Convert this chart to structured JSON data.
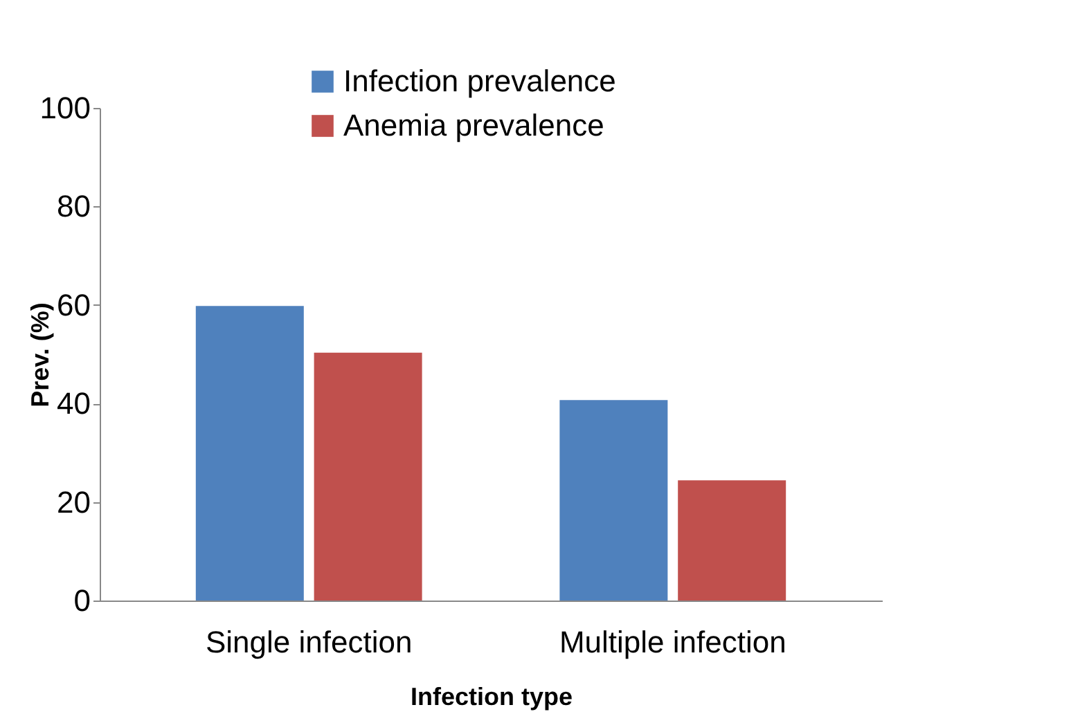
{
  "chart_data": {
    "type": "bar",
    "categories": [
      "Single infection",
      "Multiple infection"
    ],
    "series": [
      {
        "name": "Infection prevalence",
        "color": "#4f81bd",
        "values": [
          59.8,
          40.7
        ]
      },
      {
        "name": "Anemia  prevalence",
        "color": "#c0504d",
        "values": [
          50.3,
          24.4
        ]
      }
    ],
    "xlabel": "Infection type",
    "ylabel": "Prev. (%)",
    "ylim": [
      0,
      100
    ],
    "yticks": [
      0,
      20,
      40,
      60,
      80,
      100
    ],
    "grid": false,
    "legend": "top"
  }
}
